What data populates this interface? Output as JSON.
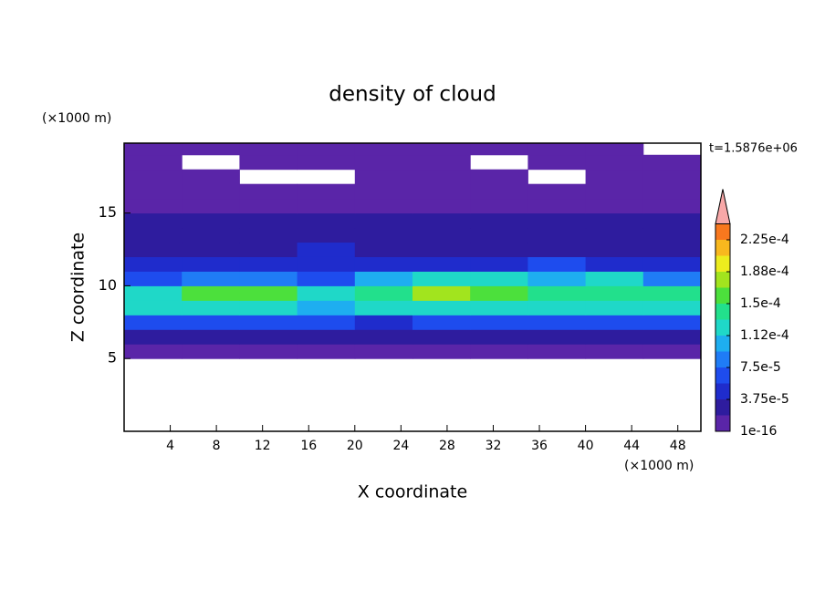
{
  "chart_data": {
    "type": "contour",
    "title": "density of cloud",
    "xlabel": "X coordinate",
    "ylabel": "Z coordinate",
    "xunit": "(×1000 m)",
    "yunit": "(×1000 m)",
    "annotation": "t=1.5876e+06",
    "xlim": [
      0,
      50
    ],
    "ylim": [
      0,
      19.8
    ],
    "xticks": [
      4,
      8,
      12,
      16,
      20,
      24,
      28,
      32,
      36,
      40,
      44,
      48
    ],
    "yticks": [
      5,
      10,
      15
    ],
    "x": [
      2.5,
      7.5,
      12.5,
      17.5,
      22.5,
      27.5,
      32.5,
      37.5,
      42.5,
      47.5
    ],
    "y": [
      0.5,
      1.5,
      2.5,
      3.5,
      4.5,
      5.5,
      6.5,
      7.5,
      8.5,
      9.5,
      10.5,
      11.5,
      12.5,
      13.5,
      14.5,
      15.5,
      16.5,
      17.5,
      18.5,
      19.5
    ],
    "z": [
      [
        null,
        null,
        null,
        null,
        null,
        null,
        null,
        null,
        null,
        null
      ],
      [
        null,
        null,
        null,
        null,
        null,
        null,
        null,
        null,
        null,
        null
      ],
      [
        null,
        null,
        null,
        null,
        null,
        null,
        null,
        null,
        null,
        null
      ],
      [
        null,
        null,
        null,
        null,
        null,
        null,
        null,
        null,
        null,
        null
      ],
      [
        null,
        null,
        null,
        null,
        null,
        null,
        null,
        null,
        null,
        null
      ],
      [
        1e-05,
        1e-05,
        1e-05,
        1e-05,
        1e-05,
        1e-05,
        1e-05,
        1e-05,
        1e-05,
        1e-05
      ],
      [
        3e-05,
        3e-05,
        3.5e-05,
        3e-05,
        3e-05,
        3.5e-05,
        3e-05,
        3e-05,
        2.5e-05,
        3e-05
      ],
      [
        6e-05,
        6.5e-05,
        6e-05,
        6e-05,
        5.5e-05,
        6e-05,
        6.5e-05,
        6e-05,
        6e-05,
        6.5e-05
      ],
      [
        0.000115,
        0.000125,
        0.00012,
        0.000105,
        0.00012,
        0.00013,
        0.000125,
        0.00012,
        0.000125,
        0.00012
      ],
      [
        0.00013,
        0.000155,
        0.00016,
        0.00012,
        0.000145,
        0.00017,
        0.000165,
        0.000145,
        0.00014,
        0.000135
      ],
      [
        7e-05,
        9e-05,
        8.5e-05,
        7e-05,
        0.00011,
        0.00012,
        0.000115,
        0.00011,
        0.00012,
        9e-05
      ],
      [
        4.5e-05,
        5e-05,
        4.5e-05,
        5e-05,
        4.5e-05,
        5e-05,
        4.5e-05,
        6e-05,
        5.5e-05,
        4.5e-05
      ],
      [
        3e-05,
        3.5e-05,
        3.5e-05,
        4e-05,
        3e-05,
        3e-05,
        3e-05,
        3.5e-05,
        3e-05,
        3e-05
      ],
      [
        2.5e-05,
        2.5e-05,
        2.5e-05,
        2.5e-05,
        2.5e-05,
        2.5e-05,
        2.5e-05,
        2.5e-05,
        2.5e-05,
        2.5e-05
      ],
      [
        2e-05,
        2e-05,
        2e-05,
        2e-05,
        2e-05,
        2e-05,
        2e-05,
        2e-05,
        2e-05,
        2e-05
      ],
      [
        1e-05,
        1e-05,
        1e-05,
        1e-05,
        1e-05,
        1e-05,
        1e-05,
        1e-05,
        1e-05,
        1e-05
      ],
      [
        1e-05,
        1e-05,
        1e-05,
        1e-05,
        1e-05,
        1e-05,
        1e-05,
        1e-05,
        1e-05,
        1e-05
      ],
      [
        1e-05,
        1e-05,
        null,
        null,
        1e-05,
        1e-05,
        1e-05,
        null,
        1e-05,
        1e-05
      ],
      [
        1e-05,
        null,
        1e-05,
        1e-05,
        1e-05,
        1e-05,
        null,
        1e-05,
        1e-05,
        1e-05
      ],
      [
        1e-05,
        1e-05,
        1e-05,
        1e-05,
        1e-05,
        1e-05,
        1e-05,
        1e-05,
        1e-05,
        null
      ]
    ],
    "levels": [
      1e-16,
      1.875e-05,
      3.75e-05,
      5.625e-05,
      7.5e-05,
      9.375e-05,
      0.0001125,
      0.00013125,
      0.00015,
      0.00016875,
      0.0001875,
      0.00020625,
      0.000225,
      0.00024375
    ],
    "colors": [
      "#5a25a8",
      "#2e1c9e",
      "#1f2ccc",
      "#1e4cee",
      "#1f7cf6",
      "#1eaef0",
      "#1fd8c8",
      "#22e08c",
      "#4ce03c",
      "#a2e41e",
      "#ecec1e",
      "#f8b81e",
      "#f8781e"
    ],
    "extend_color": "#f8a8a8",
    "cticks": [
      {
        "value": 1e-16,
        "label": "1e-16"
      },
      {
        "value": 3.75e-05,
        "label": "3.75e-5"
      },
      {
        "value": 7.5e-05,
        "label": "7.5e-5"
      },
      {
        "value": 0.0001125,
        "label": "1.12e-4"
      },
      {
        "value": 0.00015,
        "label": "1.5e-4"
      },
      {
        "value": 0.0001875,
        "label": "1.88e-4"
      },
      {
        "value": 0.000225,
        "label": "2.25e-4"
      }
    ]
  }
}
